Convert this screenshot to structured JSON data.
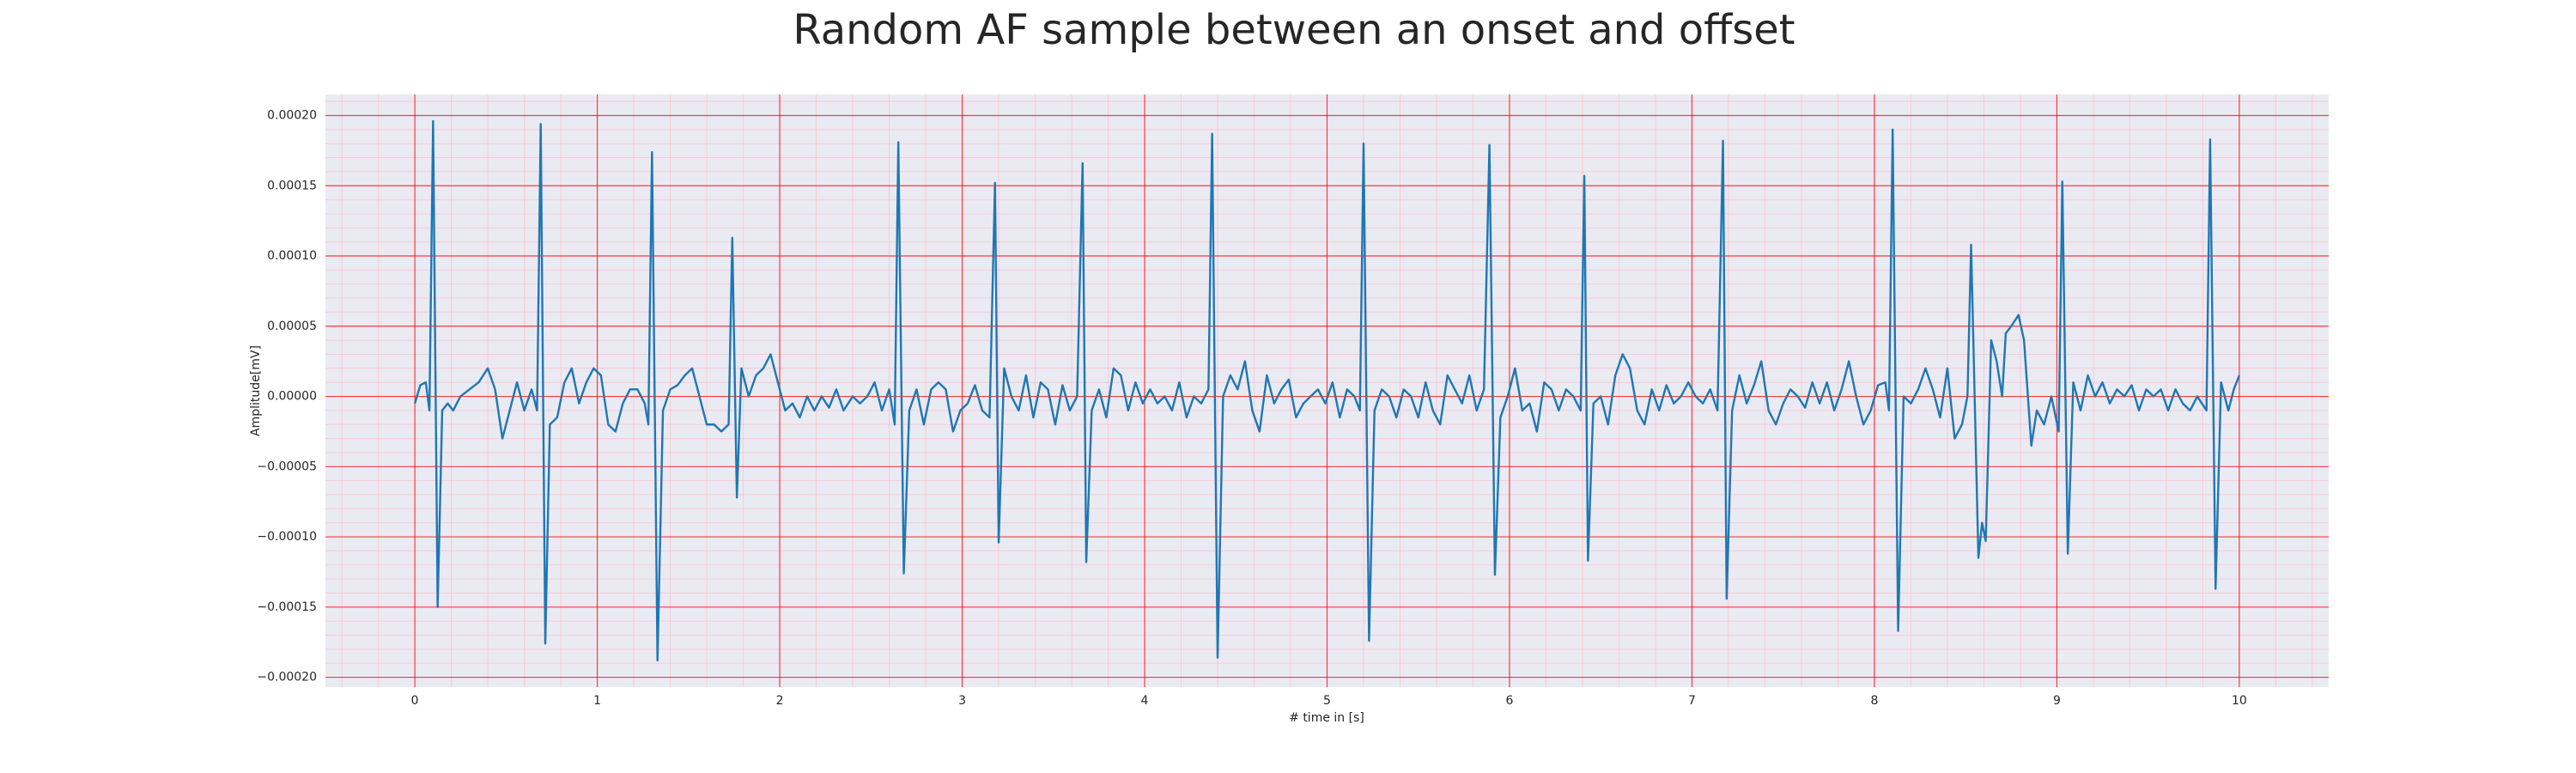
{
  "chart_data": {
    "type": "line",
    "title": "Random AF sample between an onset and offset",
    "xlabel": "# time in [s]",
    "ylabel": "Amplitude[mV]",
    "color": "#1f77b4",
    "grid": true,
    "grid_color": "#ff0000",
    "minor_grid": true,
    "minor_grid_color": "#ffb6c1",
    "xlim": [
      -0.49,
      10.49
    ],
    "ylim": [
      -0.000207,
      0.000215
    ],
    "xticks": [
      0,
      1,
      2,
      3,
      4,
      5,
      6,
      7,
      8,
      9,
      10
    ],
    "yticks": [
      {
        "value": -0.0002,
        "label": "−0.00020"
      },
      {
        "value": -0.00015,
        "label": "−0.00015"
      },
      {
        "value": -0.0001,
        "label": "−0.00010"
      },
      {
        "value": -5e-05,
        "label": "−0.00005"
      },
      {
        "value": 0,
        "label": "0.00000"
      },
      {
        "value": 5e-05,
        "label": "0.00005"
      },
      {
        "value": 0.0001,
        "label": "0.00010"
      },
      {
        "value": 0.00015,
        "label": "0.00015"
      },
      {
        "value": 0.0002,
        "label": "0.00020"
      }
    ],
    "x": [
      0.0,
      0.03,
      0.06,
      0.08,
      0.1,
      0.125,
      0.15,
      0.18,
      0.21,
      0.25,
      0.3,
      0.35,
      0.4,
      0.44,
      0.48,
      0.52,
      0.56,
      0.6,
      0.64,
      0.67,
      0.69,
      0.715,
      0.74,
      0.78,
      0.82,
      0.86,
      0.9,
      0.94,
      0.98,
      1.02,
      1.06,
      1.1,
      1.14,
      1.18,
      1.22,
      1.26,
      1.28,
      1.3,
      1.33,
      1.36,
      1.4,
      1.44,
      1.48,
      1.52,
      1.56,
      1.6,
      1.64,
      1.68,
      1.72,
      1.74,
      1.765,
      1.79,
      1.83,
      1.87,
      1.91,
      1.95,
      1.99,
      2.03,
      2.07,
      2.11,
      2.15,
      2.19,
      2.23,
      2.27,
      2.31,
      2.35,
      2.4,
      2.44,
      2.48,
      2.52,
      2.56,
      2.6,
      2.63,
      2.65,
      2.68,
      2.71,
      2.75,
      2.79,
      2.83,
      2.87,
      2.91,
      2.95,
      2.99,
      3.03,
      3.07,
      3.11,
      3.15,
      3.18,
      3.2,
      3.23,
      3.27,
      3.31,
      3.35,
      3.39,
      3.43,
      3.47,
      3.51,
      3.55,
      3.59,
      3.63,
      3.66,
      3.68,
      3.71,
      3.75,
      3.79,
      3.83,
      3.87,
      3.91,
      3.95,
      3.99,
      4.03,
      4.07,
      4.11,
      4.15,
      4.19,
      4.23,
      4.27,
      4.31,
      4.35,
      4.37,
      4.4,
      4.43,
      4.47,
      4.51,
      4.55,
      4.59,
      4.63,
      4.67,
      4.71,
      4.75,
      4.79,
      4.83,
      4.87,
      4.91,
      4.95,
      4.99,
      5.03,
      5.07,
      5.11,
      5.15,
      5.18,
      5.2,
      5.23,
      5.26,
      5.3,
      5.34,
      5.38,
      5.42,
      5.46,
      5.5,
      5.54,
      5.58,
      5.62,
      5.66,
      5.7,
      5.74,
      5.78,
      5.82,
      5.86,
      5.89,
      5.92,
      5.95,
      5.99,
      6.03,
      6.07,
      6.11,
      6.15,
      6.19,
      6.23,
      6.27,
      6.31,
      6.35,
      6.39,
      6.41,
      6.43,
      6.46,
      6.5,
      6.54,
      6.58,
      6.62,
      6.66,
      6.7,
      6.74,
      6.78,
      6.82,
      6.86,
      6.9,
      6.94,
      6.98,
      7.02,
      7.06,
      7.1,
      7.14,
      7.17,
      7.19,
      7.22,
      7.26,
      7.3,
      7.34,
      7.38,
      7.42,
      7.46,
      7.5,
      7.54,
      7.58,
      7.62,
      7.66,
      7.7,
      7.74,
      7.78,
      7.82,
      7.86,
      7.9,
      7.94,
      7.98,
      8.02,
      8.06,
      8.08,
      8.1,
      8.13,
      8.16,
      8.2,
      8.24,
      8.28,
      8.32,
      8.36,
      8.4,
      8.44,
      8.48,
      8.51,
      8.53,
      8.57,
      8.59,
      8.61,
      8.64,
      8.67,
      8.7,
      8.72,
      8.75,
      8.79,
      8.82,
      8.86,
      8.89,
      8.93,
      8.97,
      9.01,
      9.03,
      9.06,
      9.09,
      9.13,
      9.17,
      9.21,
      9.25,
      9.29,
      9.33,
      9.37,
      9.41,
      9.45,
      9.49,
      9.53,
      9.57,
      9.61,
      9.65,
      9.69,
      9.73,
      9.77,
      9.82,
      9.84,
      9.87,
      9.9,
      9.94,
      9.97,
      10.0
    ],
    "values": [
      -5e-06,
      8e-06,
      1e-05,
      -1e-05,
      0.000196,
      -0.00015,
      -1e-05,
      -5e-06,
      -1e-05,
      0.0,
      5e-06,
      1e-05,
      2e-05,
      5e-06,
      -3e-05,
      -1e-05,
      1e-05,
      -1e-05,
      5e-06,
      -1e-05,
      0.000194,
      -0.000176,
      -2e-05,
      -1.5e-05,
      1e-05,
      2e-05,
      -5e-06,
      1e-05,
      2e-05,
      1.5e-05,
      -2e-05,
      -2.5e-05,
      -5e-06,
      5e-06,
      5e-06,
      -5e-06,
      -2e-05,
      0.000174,
      -0.000188,
      -1e-05,
      5e-06,
      8e-06,
      1.5e-05,
      2e-05,
      0.0,
      -2e-05,
      -2e-05,
      -2.5e-05,
      -2e-05,
      0.000113,
      -7.2e-05,
      2e-05,
      0.0,
      1.5e-05,
      2e-05,
      3e-05,
      1e-05,
      -1e-05,
      -5e-06,
      -1.5e-05,
      0.0,
      -1e-05,
      0.0,
      -8e-06,
      5e-06,
      -1e-05,
      0.0,
      -5e-06,
      0.0,
      1e-05,
      -1e-05,
      5e-06,
      -2e-05,
      0.000181,
      -0.000126,
      -1e-05,
      5e-06,
      -2e-05,
      5e-06,
      1e-05,
      5e-06,
      -2.5e-05,
      -1e-05,
      -5e-06,
      8e-06,
      -1e-05,
      -1.5e-05,
      0.000152,
      -0.000104,
      2e-05,
      0.0,
      -1e-05,
      1.5e-05,
      -1.5e-05,
      1e-05,
      5e-06,
      -2e-05,
      8e-06,
      -1e-05,
      0.0,
      0.000166,
      -0.000118,
      -1e-05,
      5e-06,
      -1.5e-05,
      2e-05,
      1.5e-05,
      -1e-05,
      1e-05,
      -5e-06,
      5e-06,
      -5e-06,
      0.0,
      -1e-05,
      1e-05,
      -1.5e-05,
      0.0,
      -5e-06,
      5e-06,
      0.000187,
      -0.000186,
      0.0,
      1.5e-05,
      5e-06,
      2.5e-05,
      -1e-05,
      -2.5e-05,
      1.5e-05,
      -5e-06,
      5e-06,
      1.2e-05,
      -1.5e-05,
      -5e-06,
      0.0,
      5e-06,
      -5e-06,
      1e-05,
      -1.5e-05,
      5e-06,
      0.0,
      -1e-05,
      0.00018,
      -0.000174,
      -1e-05,
      5e-06,
      0.0,
      -1.5e-05,
      5e-06,
      0.0,
      -1.5e-05,
      1e-05,
      -1e-05,
      -2e-05,
      1.5e-05,
      5e-06,
      -5e-06,
      1.5e-05,
      -1e-05,
      5e-06,
      0.000179,
      -0.000127,
      -1.5e-05,
      0.0,
      2e-05,
      -1e-05,
      -5e-06,
      -2.5e-05,
      1e-05,
      5e-06,
      -1e-05,
      5e-06,
      0.0,
      -1e-05,
      0.000157,
      -0.000117,
      -5e-06,
      0.0,
      -2e-05,
      1.5e-05,
      3e-05,
      2e-05,
      -1e-05,
      -2e-05,
      5e-06,
      -1e-05,
      8e-06,
      -5e-06,
      0.0,
      1e-05,
      0.0,
      -5e-06,
      5e-06,
      -1e-05,
      0.000182,
      -0.000144,
      -1e-05,
      1.5e-05,
      -5e-06,
      8e-06,
      2.5e-05,
      -1e-05,
      -2e-05,
      -5e-06,
      5e-06,
      0.0,
      -8e-06,
      1e-05,
      -5e-06,
      1e-05,
      -1e-05,
      5e-06,
      2.5e-05,
      0.0,
      -2e-05,
      -1e-05,
      8e-06,
      1e-05,
      -1e-05,
      0.00019,
      -0.000167,
      0.0,
      -5e-06,
      5e-06,
      2e-05,
      5e-06,
      -1.5e-05,
      2e-05,
      -3e-05,
      -2e-05,
      0.0,
      0.000108,
      -0.000115,
      -9e-05,
      -0.000103,
      4e-05,
      2.5e-05,
      0.0,
      4.5e-05,
      5e-05,
      5.8e-05,
      4e-05,
      -3.5e-05,
      -1e-05,
      -2e-05,
      0.0,
      -2.5e-05,
      0.000153,
      -0.000112,
      1e-05,
      -1e-05,
      1.5e-05,
      0.0,
      1e-05,
      -5e-06,
      5e-06,
      0.0,
      8e-06,
      -1e-05,
      5e-06,
      0.0,
      5e-06,
      -1e-05,
      5e-06,
      -5e-06,
      -1e-05,
      0.0,
      -1e-05,
      0.000183,
      -0.000137,
      1e-05,
      -1e-05,
      5e-06,
      1.5e-05
    ]
  }
}
